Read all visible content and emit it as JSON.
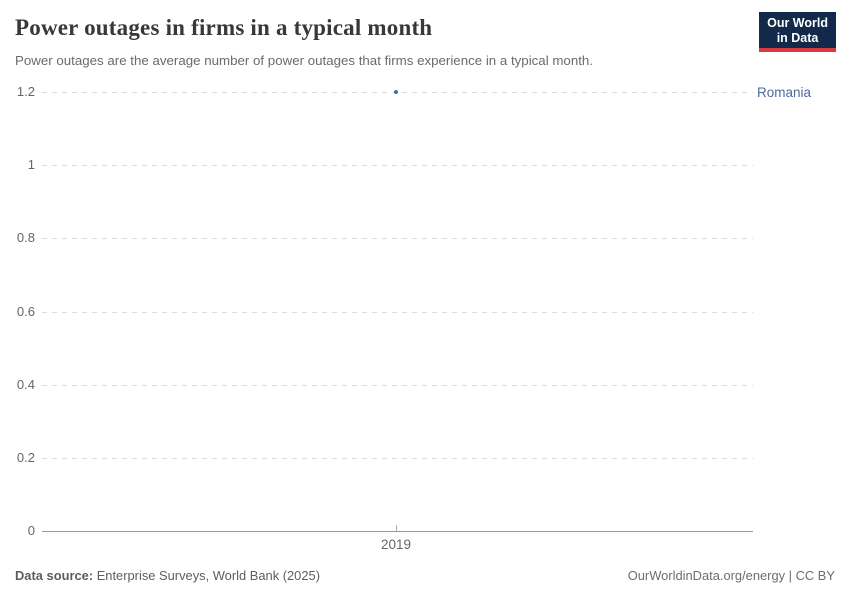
{
  "header": {
    "title": "Power outages in firms in a typical month",
    "subtitle": "Power outages are the average number of power outages that firms experience in a typical month.",
    "logo": {
      "line1": "Our World",
      "line2": "in Data"
    }
  },
  "chart_data": {
    "type": "scatter",
    "title": "Power outages in firms in a typical month",
    "series": [
      {
        "name": "Romania",
        "color": "#4c6a9c",
        "label_color": "#4c6a9c",
        "points": [
          {
            "x": 2019,
            "y": 1.2
          }
        ]
      }
    ],
    "x_ticks": [
      "2019"
    ],
    "y_ticks": [
      0,
      0.2,
      0.4,
      0.6,
      0.8,
      1,
      1.2
    ],
    "ylim": [
      0,
      1.2
    ],
    "xlabel": "",
    "ylabel": "",
    "grid": "horizontal-dashed",
    "legend_position": "entity-label-right"
  },
  "footer": {
    "source_label": "Data source:",
    "source_value": "Enterprise Surveys, World Bank (2025)",
    "credit": "OurWorldinData.org/energy | CC BY"
  },
  "colors": {
    "series": "#4c6a9c",
    "gridline": "#dcdcdc",
    "axis_line": "#999999",
    "axis_text": "#666666",
    "logo_bg": "#12294b",
    "logo_bar": "#d8383f"
  }
}
